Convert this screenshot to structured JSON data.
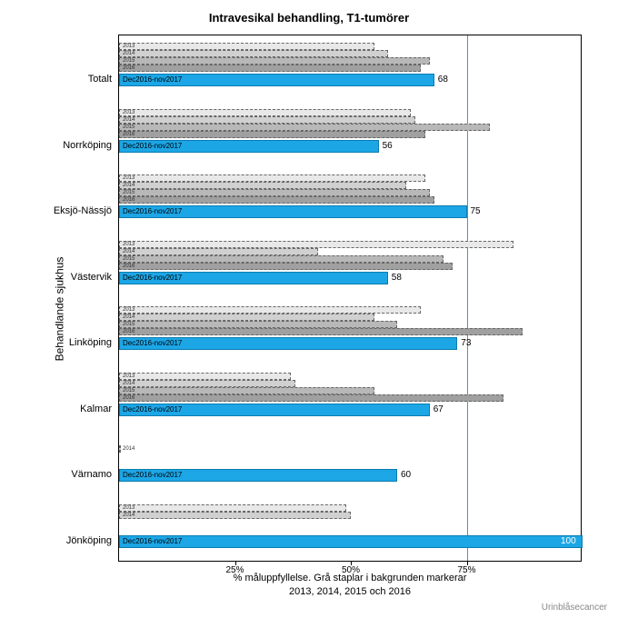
{
  "title": "Intravesikal behandling, T1-tumörer",
  "y_axis_label": "Behandlande sjukhus",
  "x_axis_label": "% måluppfyllelse. Grå staplar i bakgrunden markerar\n2013, 2014, 2015 och 2016",
  "footer": "Urinblåsecancer",
  "x_ticks": [
    25,
    50,
    75
  ],
  "x_tick_labels": [
    "25%",
    "50%",
    "75%"
  ],
  "reference_line": 75,
  "current_period_label": "Dec2016-nov2017",
  "year_labels": [
    "2013",
    "2014",
    "2015",
    "2016"
  ],
  "x_max": 100,
  "colors": {
    "current_bar": "#1ca6e6",
    "current_border": "#0a7cb0",
    "ref_line": "#1ca6e6",
    "gray_bars": [
      "#e8e8e8",
      "#d0d0d0",
      "#b8b8b8",
      "#a0a0a0"
    ]
  },
  "categories": [
    {
      "name": "Totalt",
      "years": [
        55,
        58,
        67,
        65
      ],
      "current": 68
    },
    {
      "name": "Norrköping",
      "years": [
        63,
        64,
        80,
        66
      ],
      "current": 56
    },
    {
      "name": "Eksjö-Nässjö",
      "years": [
        66,
        62,
        67,
        68
      ],
      "current": 75
    },
    {
      "name": "Västervik",
      "years": [
        85,
        43,
        70,
        72
      ],
      "current": 58
    },
    {
      "name": "Linköping",
      "years": [
        65,
        55,
        60,
        87
      ],
      "current": 73
    },
    {
      "name": "Kalmar",
      "years": [
        37,
        38,
        55,
        83
      ],
      "current": 67
    },
    {
      "name": "Värnamo",
      "years": [
        null,
        0,
        null,
        null
      ],
      "current": 60
    },
    {
      "name": "Jönköping",
      "years": [
        49,
        50,
        null,
        null
      ],
      "current": 100
    }
  ]
}
